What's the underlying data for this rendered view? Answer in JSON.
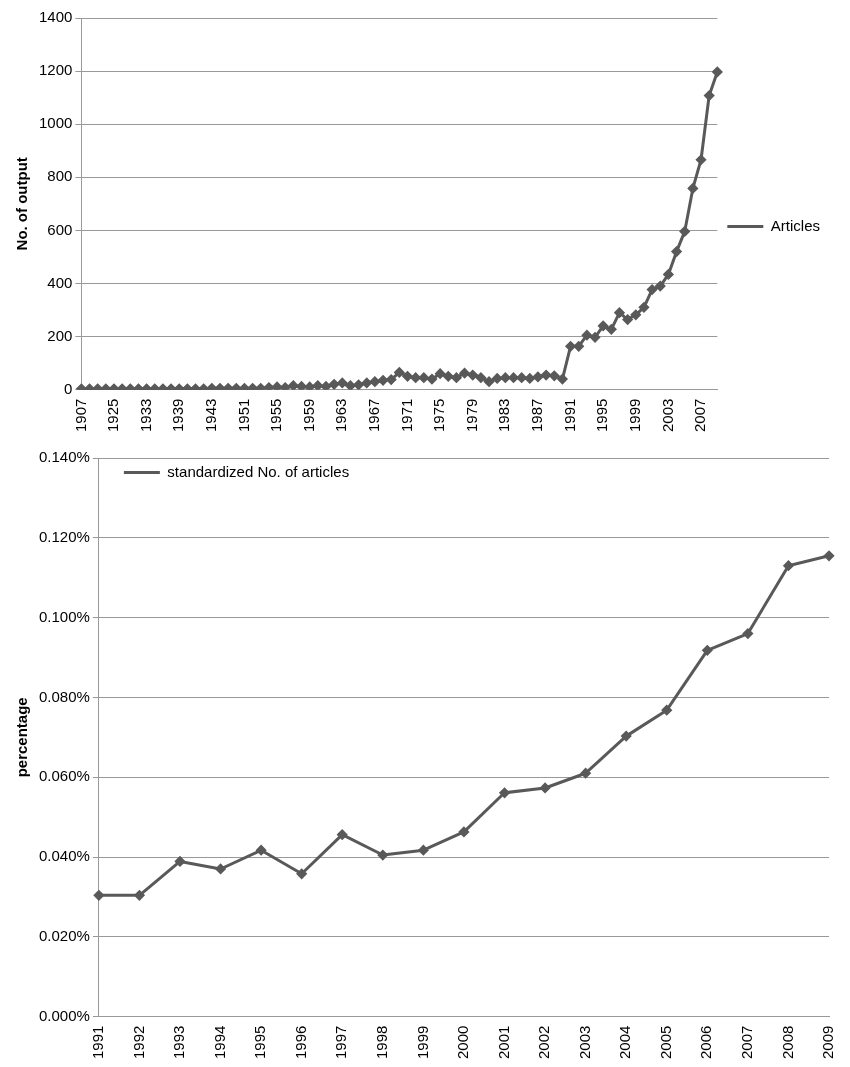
{
  "chart_data": [
    {
      "type": "line",
      "ylabel": "No. of output",
      "categories": [
        "1907",
        null,
        null,
        null,
        "1925",
        null,
        null,
        null,
        "1933",
        null,
        null,
        null,
        "1939",
        null,
        null,
        null,
        "1943",
        null,
        null,
        null,
        "1951",
        null,
        null,
        null,
        "1955",
        null,
        null,
        null,
        "1959",
        null,
        null,
        null,
        "1963",
        null,
        null,
        null,
        "1967",
        null,
        null,
        null,
        "1971",
        null,
        null,
        null,
        "1975",
        null,
        null,
        null,
        "1979",
        null,
        null,
        null,
        "1983",
        null,
        null,
        null,
        "1987",
        null,
        null,
        null,
        "1991",
        null,
        null,
        null,
        "1995",
        null,
        null,
        null,
        "1999",
        null,
        null,
        null,
        "2003",
        null,
        null,
        null,
        "2007",
        null,
        null
      ],
      "series": [
        {
          "name": "Articles",
          "color": "#595959",
          "values": [
            3,
            3,
            3,
            3,
            3,
            3,
            3,
            3,
            3,
            3,
            3,
            3,
            3,
            3,
            3,
            3,
            5,
            5,
            5,
            5,
            5,
            5,
            5,
            8,
            10,
            8,
            15,
            12,
            10,
            15,
            12,
            20,
            25,
            15,
            18,
            25,
            30,
            35,
            38,
            65,
            50,
            45,
            45,
            40,
            60,
            50,
            45,
            62,
            55,
            45,
            30,
            42,
            45,
            45,
            45,
            42,
            48,
            55,
            52,
            40,
            163,
            163,
            205,
            197,
            240,
            227,
            290,
            264,
            282,
            310,
            377,
            390,
            434,
            520,
            596,
            758,
            866,
            1108,
            1197
          ]
        }
      ],
      "ylim": [
        0,
        1400
      ],
      "yticks": [
        0,
        200,
        400,
        600,
        800,
        1000,
        1200,
        1400
      ],
      "grid": "y",
      "legend": "right",
      "marker": "diamond"
    },
    {
      "type": "line",
      "ylabel": "percentage",
      "categories": [
        "1991",
        "1992",
        "1993",
        "1994",
        "1995",
        "1996",
        "1997",
        "1998",
        "1999",
        "2000",
        "2001",
        "2002",
        "2003",
        "2004",
        "2005",
        "2006",
        "2007",
        "2008",
        "2009"
      ],
      "series": [
        {
          "name": "standardized No. of articles",
          "color": "#595959",
          "values": [
            0.0304,
            0.0304,
            0.0389,
            0.037,
            0.0417,
            0.0358,
            0.0456,
            0.0405,
            0.0417,
            0.0463,
            0.0561,
            0.0573,
            0.061,
            0.0703,
            0.0768,
            0.0918,
            0.096,
            0.113,
            0.1155
          ]
        }
      ],
      "ylim": [
        0,
        0.14
      ],
      "yticks": [
        {
          "value": 0,
          "label": "0.000%"
        },
        {
          "value": 0.02,
          "label": "0.020%"
        },
        {
          "value": 0.04,
          "label": "0.040%"
        },
        {
          "value": 0.06,
          "label": "0.060%"
        },
        {
          "value": 0.08,
          "label": "0.080%"
        },
        {
          "value": 0.1,
          "label": "0.100%"
        },
        {
          "value": 0.12,
          "label": "0.120%"
        },
        {
          "value": 0.14,
          "label": "0.140%"
        }
      ],
      "grid": "y",
      "legend": "top left",
      "marker": "diamond"
    }
  ]
}
